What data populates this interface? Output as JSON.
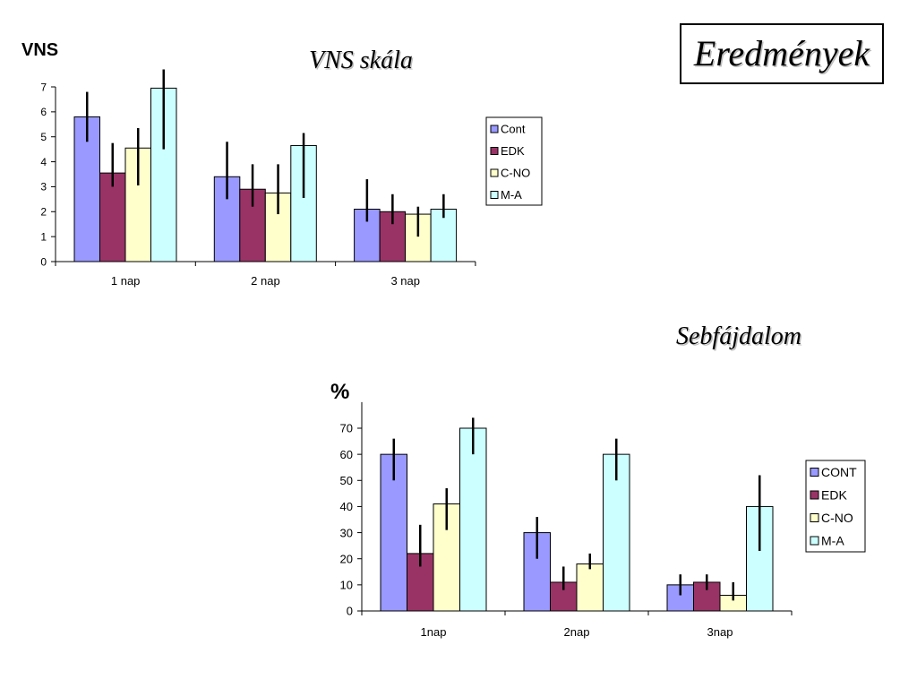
{
  "title": "Eredmények",
  "chart_data": [
    {
      "type": "bar",
      "title": "VNS skála",
      "ylabel": "VNS",
      "xlabel": "",
      "categories": [
        "1 nap",
        "2 nap",
        "3 nap"
      ],
      "ylim": [
        0,
        7
      ],
      "yticks": [
        0,
        1,
        2,
        3,
        4,
        5,
        6,
        7
      ],
      "legend_position": "right",
      "grid": false,
      "error_bars": true,
      "series": [
        {
          "name": "Cont",
          "color": "#9999ff",
          "values": [
            5.8,
            3.4,
            2.1
          ],
          "error_low": [
            1.0,
            0.9,
            0.5
          ],
          "error_high": [
            1.0,
            1.4,
            1.2
          ]
        },
        {
          "name": "EDK",
          "color": "#993366",
          "values": [
            3.55,
            2.9,
            2.0
          ],
          "error_low": [
            0.55,
            0.7,
            0.5
          ],
          "error_high": [
            1.2,
            1.0,
            0.7
          ]
        },
        {
          "name": "C-NO",
          "color": "#ffffcc",
          "values": [
            4.55,
            2.75,
            1.9
          ],
          "error_low": [
            1.5,
            0.85,
            0.9
          ],
          "error_high": [
            0.8,
            1.15,
            0.3
          ]
        },
        {
          "name": "M-A",
          "color": "#ccffff",
          "values": [
            6.95,
            4.65,
            2.1
          ],
          "error_low": [
            2.45,
            2.1,
            0.35
          ],
          "error_high": [
            0.75,
            0.5,
            0.6
          ]
        }
      ]
    },
    {
      "type": "bar",
      "title": "Sebfájdalom",
      "ylabel": "%",
      "xlabel": "",
      "categories": [
        "1nap",
        "2nap",
        "3nap"
      ],
      "ylim": [
        0,
        80
      ],
      "yticks": [
        0,
        10,
        20,
        30,
        40,
        50,
        60,
        70
      ],
      "legend_position": "right",
      "grid": false,
      "error_bars": true,
      "series": [
        {
          "name": "CONT",
          "color": "#9999ff",
          "values": [
            60,
            30,
            10
          ],
          "error_low": [
            10,
            10,
            4
          ],
          "error_high": [
            6,
            6,
            4
          ]
        },
        {
          "name": "EDK",
          "color": "#993366",
          "values": [
            22,
            11,
            11
          ],
          "error_low": [
            5,
            3,
            3
          ],
          "error_high": [
            11,
            6,
            3
          ]
        },
        {
          "name": "C-NO",
          "color": "#ffffcc",
          "values": [
            41,
            18,
            6
          ],
          "error_low": [
            10,
            2,
            2
          ],
          "error_high": [
            6,
            4,
            5
          ]
        },
        {
          "name": "M-A",
          "color": "#ccffff",
          "values": [
            70,
            60,
            40
          ],
          "error_low": [
            10,
            10,
            17
          ],
          "error_high": [
            4,
            6,
            12
          ]
        }
      ]
    }
  ]
}
